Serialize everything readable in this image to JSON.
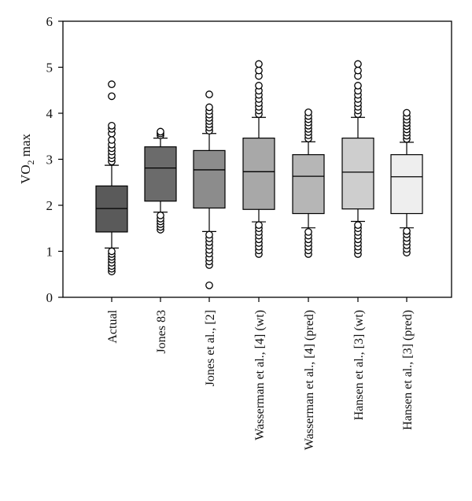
{
  "chart_data": {
    "type": "box",
    "ylabel": "VO",
    "ylabel_sub": "2",
    "ylabel_suffix": " max",
    "ylim": [
      0,
      6
    ],
    "yticks": [
      "0",
      "1",
      "2",
      "3",
      "4",
      "5",
      "6"
    ],
    "categories": [
      "Actual",
      "Jones 83",
      "Jones et al., [2]",
      "Wasserman et al., [4] (wt)",
      "Wasserman et al., [4] (pred)",
      "Hansen et al., [3] (wt)",
      "Hansen et al., [3] (pred)"
    ],
    "boxes": [
      {
        "color": "#5a5a5a",
        "whisker_low": 1.07,
        "q1": 1.42,
        "median": 1.93,
        "q3": 2.42,
        "whisker_high": 2.87,
        "outliers": [
          0.56,
          0.62,
          0.68,
          0.75,
          0.82,
          0.88,
          0.94,
          1.0,
          2.95,
          3.02,
          3.09,
          3.17,
          3.24,
          3.32,
          3.42,
          3.56,
          3.66,
          3.73,
          4.37,
          4.63
        ]
      },
      {
        "color": "#6b6b6b",
        "whisker_low": 1.85,
        "q1": 2.09,
        "median": 2.81,
        "q3": 3.27,
        "whisker_high": 3.46,
        "outliers": [
          1.47,
          1.53,
          1.59,
          1.65,
          1.71,
          1.78,
          3.52,
          3.56,
          3.6
        ]
      },
      {
        "color": "#8c8c8c",
        "whisker_low": 1.43,
        "q1": 1.94,
        "median": 2.77,
        "q3": 3.19,
        "whisker_high": 3.56,
        "outliers": [
          0.26,
          0.7,
          0.78,
          0.86,
          0.95,
          1.03,
          1.12,
          1.2,
          1.28,
          1.36,
          3.62,
          3.69,
          3.76,
          3.83,
          3.9,
          3.97,
          4.05,
          4.13,
          4.41
        ]
      },
      {
        "color": "#a8a8a8",
        "whisker_low": 1.64,
        "q1": 1.91,
        "median": 2.73,
        "q3": 3.46,
        "whisker_high": 3.91,
        "outliers": [
          0.94,
          1.02,
          1.1,
          1.18,
          1.26,
          1.34,
          1.42,
          1.5,
          1.57,
          3.98,
          4.06,
          4.14,
          4.22,
          4.31,
          4.4,
          4.49,
          4.6,
          4.81,
          4.93,
          5.07
        ]
      },
      {
        "color": "#b6b6b6",
        "whisker_low": 1.51,
        "q1": 1.82,
        "median": 2.63,
        "q3": 3.1,
        "whisker_high": 3.38,
        "outliers": [
          0.94,
          1.02,
          1.1,
          1.18,
          1.26,
          1.34,
          1.42,
          3.45,
          3.52,
          3.59,
          3.66,
          3.73,
          3.8,
          3.87,
          3.94,
          4.02
        ]
      },
      {
        "color": "#cecece",
        "whisker_low": 1.65,
        "q1": 1.92,
        "median": 2.72,
        "q3": 3.46,
        "whisker_high": 3.91,
        "outliers": [
          0.94,
          1.02,
          1.1,
          1.18,
          1.26,
          1.34,
          1.42,
          1.5,
          1.57,
          3.98,
          4.06,
          4.14,
          4.22,
          4.31,
          4.4,
          4.49,
          4.6,
          4.81,
          4.93,
          5.07
        ]
      },
      {
        "color": "#eeeeee",
        "whisker_low": 1.51,
        "q1": 1.82,
        "median": 2.62,
        "q3": 3.1,
        "whisker_high": 3.37,
        "outliers": [
          0.97,
          1.05,
          1.13,
          1.21,
          1.29,
          1.37,
          1.44,
          3.44,
          3.51,
          3.58,
          3.65,
          3.72,
          3.79,
          3.86,
          3.93,
          4.01
        ]
      }
    ]
  }
}
